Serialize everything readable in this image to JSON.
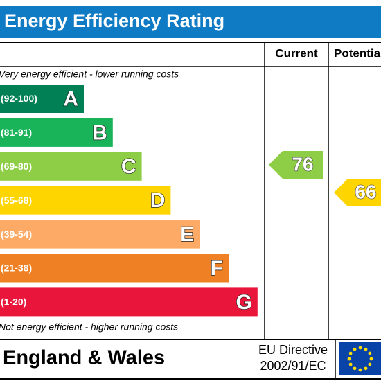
{
  "title": "Energy Efficiency Rating",
  "columns": {
    "current": "Current",
    "potential": "Potential"
  },
  "top_note": "Very energy efficient - lower running costs",
  "bottom_note": "Not energy efficient - higher running costs",
  "bands": [
    {
      "range": "(92-100)",
      "letter": "A",
      "color": "#008054"
    },
    {
      "range": "(81-91)",
      "letter": "B",
      "color": "#19b459"
    },
    {
      "range": "(69-80)",
      "letter": "C",
      "color": "#8dce46"
    },
    {
      "range": "(55-68)",
      "letter": "D",
      "color": "#ffd500"
    },
    {
      "range": "(39-54)",
      "letter": "E",
      "color": "#fcaa65"
    },
    {
      "range": "(21-38)",
      "letter": "F",
      "color": "#ef8023"
    },
    {
      "range": "(1-20)",
      "letter": "G",
      "color": "#e9153b"
    }
  ],
  "current": {
    "value": 76,
    "color": "#8dce46"
  },
  "potential": {
    "value": 66,
    "color": "#ffd500"
  },
  "footer": {
    "region": "England & Wales",
    "directive": [
      "EU Directive",
      "2002/91/EC"
    ]
  }
}
